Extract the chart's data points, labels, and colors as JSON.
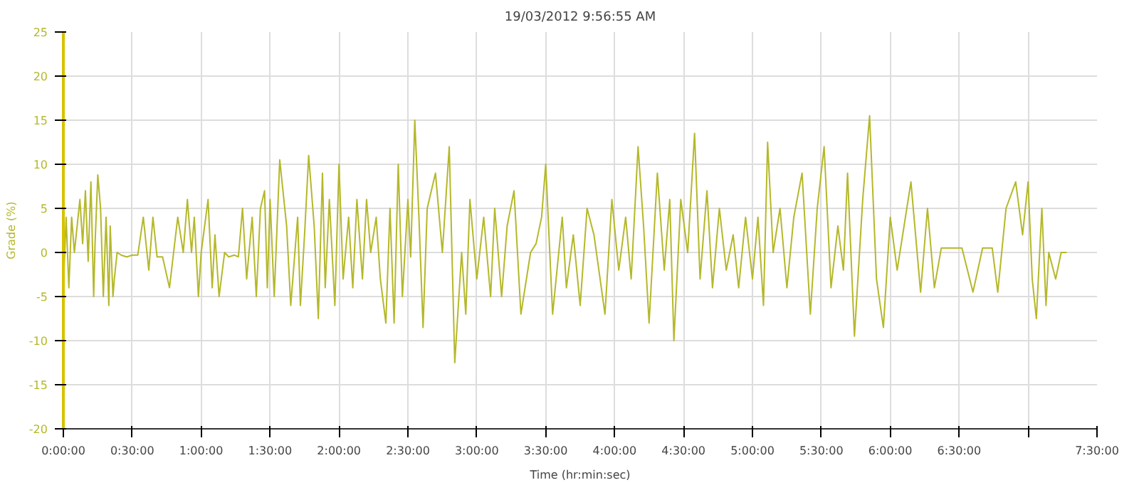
{
  "chart_data": {
    "type": "line",
    "title": "19/03/2012 9:56:55 AM",
    "xlabel": "Time (hr:min:sec)",
    "ylabel": "Grade (%)",
    "x": [
      0,
      0.02,
      0.04,
      0.06,
      0.08,
      0.1,
      0.12,
      0.14,
      0.16,
      0.18,
      0.2,
      0.22,
      0.23,
      0.25,
      0.27,
      0.29,
      0.31,
      0.33,
      0.34,
      0.36,
      0.37,
      0.39,
      0.42,
      0.46,
      0.5,
      0.54,
      0.58,
      0.62,
      0.65,
      0.68,
      0.72,
      0.77,
      0.8,
      0.83,
      0.87,
      0.9,
      0.93,
      0.95,
      0.98,
      1.0,
      1.05,
      1.08,
      1.1,
      1.13,
      1.17,
      1.2,
      1.24,
      1.27,
      1.3,
      1.33,
      1.37,
      1.4,
      1.43,
      1.46,
      1.48,
      1.5,
      1.53,
      1.57,
      1.62,
      1.65,
      1.7,
      1.72,
      1.75,
      1.78,
      1.82,
      1.85,
      1.88,
      1.9,
      1.93,
      1.97,
      2.0,
      2.03,
      2.07,
      2.1,
      2.13,
      2.17,
      2.2,
      2.23,
      2.27,
      2.3,
      2.34,
      2.37,
      2.4,
      2.43,
      2.46,
      2.5,
      2.52,
      2.55,
      2.58,
      2.61,
      2.64,
      2.7,
      2.75,
      2.8,
      2.84,
      2.89,
      2.92,
      2.95,
      3.0,
      3.05,
      3.1,
      3.13,
      3.18,
      3.22,
      3.27,
      3.32,
      3.39,
      3.43,
      3.47,
      3.5,
      3.55,
      3.62,
      3.65,
      3.7,
      3.75,
      3.8,
      3.85,
      3.93,
      3.98,
      4.03,
      4.08,
      4.12,
      4.17,
      4.21,
      4.25,
      4.31,
      4.36,
      4.4,
      4.43,
      4.48,
      4.53,
      4.58,
      4.62,
      4.67,
      4.71,
      4.76,
      4.81,
      4.86,
      4.9,
      4.95,
      5.0,
      5.04,
      5.08,
      5.11,
      5.15,
      5.2,
      5.25,
      5.3,
      5.36,
      5.42,
      5.47,
      5.52,
      5.57,
      5.62,
      5.66,
      5.69,
      5.74,
      5.8,
      5.85,
      5.9,
      5.95,
      6.0,
      6.05,
      6.1,
      6.15,
      6.22,
      6.27,
      6.32,
      6.37,
      6.45,
      6.52,
      6.6,
      6.67,
      6.74,
      6.78,
      6.84,
      6.91,
      6.96,
      7.0,
      7.03,
      7.06,
      7.1,
      7.13,
      7.15,
      7.2,
      7.24,
      7.28
    ],
    "values": [
      -4,
      4,
      -4,
      4,
      0,
      3,
      6,
      1,
      7,
      -1,
      8,
      -5,
      1,
      8.8,
      5,
      -5,
      4,
      -6,
      3,
      -5,
      -3,
      0,
      -0.3,
      -0.5,
      -0.3,
      -0.3,
      4,
      -2,
      4,
      -0.5,
      -0.5,
      -4,
      0,
      4,
      0,
      6,
      0,
      4,
      -5,
      0,
      6,
      -4,
      2,
      -5,
      0,
      -0.5,
      -0.3,
      -0.5,
      5,
      -3,
      4,
      -5,
      5,
      7,
      -4,
      6,
      -5,
      10.5,
      3,
      -6,
      4,
      -6,
      2,
      11,
      3,
      -7.5,
      9,
      -4,
      6,
      -6,
      10,
      -3,
      4,
      -4,
      6,
      -3,
      6,
      0,
      4,
      -3,
      -8,
      5,
      -8,
      10,
      -5,
      6,
      -0.5,
      15,
      4,
      -8.5,
      5,
      9,
      0,
      12,
      -12.5,
      0,
      -7,
      6,
      -3,
      4,
      -5,
      5,
      -5,
      3,
      7,
      -7,
      0,
      1,
      4,
      10,
      -7,
      4,
      -4,
      2,
      -6,
      5,
      2,
      -7,
      6,
      -2,
      4,
      -3,
      12,
      3,
      -8,
      9,
      -2,
      6,
      -10,
      6,
      0,
      13.5,
      -3,
      7,
      -4,
      5,
      -2,
      2,
      -4,
      4,
      -3,
      4,
      -6,
      12.5,
      0,
      5,
      -4,
      4,
      9,
      -7,
      5,
      12,
      -4,
      3,
      -2,
      9,
      -9.5,
      6,
      15.5,
      -3,
      -8.5,
      4,
      -2,
      3,
      8,
      -4.5,
      5,
      -4,
      0.5,
      0.5,
      0.5,
      -4.5,
      0.5,
      0.5,
      -4.5,
      5,
      8,
      2,
      8,
      -3,
      -7.5,
      5,
      -6,
      0,
      -3,
      0,
      0
    ],
    "color": "#b5b82a",
    "xlim": [
      0,
      7.5
    ],
    "ylim": [
      -20,
      25
    ],
    "xticks": [
      {
        "value": 0,
        "label": "0:00:00"
      },
      {
        "value": 0.5,
        "label": "0:30:00"
      },
      {
        "value": 1,
        "label": "1:00:00"
      },
      {
        "value": 1.5,
        "label": "1:30:00"
      },
      {
        "value": 2,
        "label": "2:00:00"
      },
      {
        "value": 2.5,
        "label": "2:30:00"
      },
      {
        "value": 3,
        "label": "3:00:00"
      },
      {
        "value": 3.5,
        "label": "3:30:00"
      },
      {
        "value": 4,
        "label": "4:00:00"
      },
      {
        "value": 4.5,
        "label": "4:30:00"
      },
      {
        "value": 5,
        "label": "5:00:00"
      },
      {
        "value": 5.5,
        "label": "5:30:00"
      },
      {
        "value": 6,
        "label": "6:00:00"
      },
      {
        "value": 6.5,
        "label": "6:30:00"
      },
      {
        "value": 7,
        "label": null
      },
      {
        "value": 7.5,
        "label": "7:30:00"
      }
    ],
    "yticks": [
      -20,
      -15,
      -10,
      -5,
      0,
      5,
      10,
      15,
      20,
      25
    ],
    "grid": true
  }
}
